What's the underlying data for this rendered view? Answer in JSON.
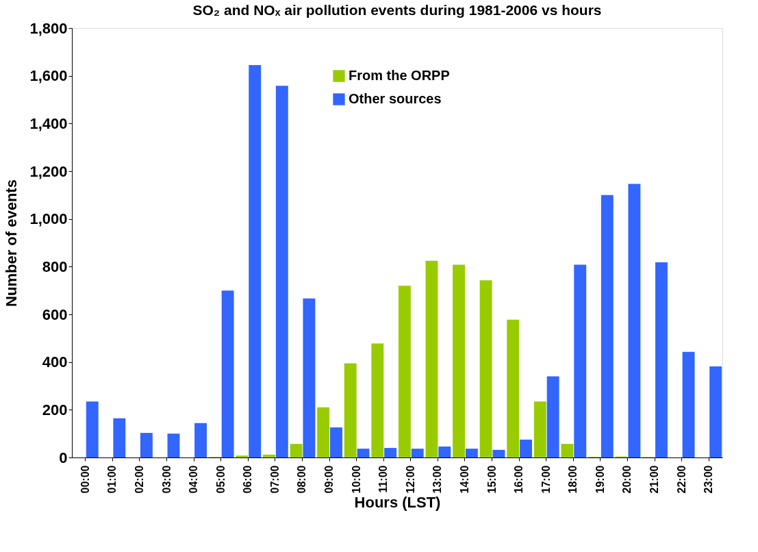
{
  "chart_data": {
    "type": "bar",
    "title": "SO₂ and NOₓ air pollution events during 1981-2006 vs hours",
    "xlabel": "Hours (LST)",
    "ylabel": "Number of events",
    "categories": [
      "00:00",
      "01:00",
      "02:00",
      "03:00",
      "04:00",
      "05:00",
      "06:00",
      "07:00",
      "08:00",
      "09:00",
      "10:00",
      "11:00",
      "12:00",
      "13:00",
      "14:00",
      "15:00",
      "16:00",
      "17:00",
      "18:00",
      "19:00",
      "20:00",
      "21:00",
      "22:00",
      "23:00"
    ],
    "series": [
      {
        "name": "From the ORPP",
        "color": "#99cc00",
        "values": [
          0,
          0,
          0,
          0,
          0,
          2,
          8,
          12,
          57,
          210,
          395,
          478,
          720,
          825,
          808,
          743,
          578,
          235,
          57,
          3,
          4,
          2,
          0,
          0
        ]
      },
      {
        "name": "Other sources",
        "color": "#3366ff",
        "values": [
          235,
          164,
          103,
          100,
          144,
          700,
          1645,
          1558,
          667,
          126,
          37,
          40,
          37,
          46,
          37,
          32,
          75,
          340,
          808,
          1100,
          1147,
          818,
          443,
          382
        ]
      }
    ],
    "ylim": [
      0,
      1800
    ],
    "yticks": [
      0,
      200,
      400,
      600,
      800,
      {
        "value": 1000,
        "label": "1,000"
      },
      {
        "value": 1200,
        "label": "1,200"
      },
      {
        "value": 1400,
        "label": "1,400"
      },
      {
        "value": 1600,
        "label": "1,600"
      },
      {
        "value": 1800,
        "label": "1,800"
      }
    ],
    "grid": false,
    "legend": "top right"
  }
}
